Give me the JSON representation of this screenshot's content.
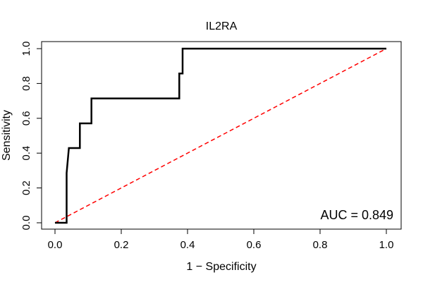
{
  "chart_data": {
    "type": "line",
    "title": "IL2RA",
    "xlabel": "1 − Specificity",
    "ylabel": "Sensitivity",
    "xlim": [
      0,
      1
    ],
    "ylim": [
      0,
      1
    ],
    "xticks": [
      "0.0",
      "0.2",
      "0.4",
      "0.6",
      "0.8",
      "1.0"
    ],
    "yticks": [
      "0.0",
      "0.2",
      "0.4",
      "0.6",
      "0.8",
      "1.0"
    ],
    "grid": false,
    "annotation": "AUC = 0.849",
    "series": [
      {
        "color": "#000000",
        "x": [
          0.0,
          0.035,
          0.035,
          0.042,
          0.042,
          0.075,
          0.075,
          0.11,
          0.11,
          0.375,
          0.375,
          0.385,
          0.385,
          1.0
        ],
        "y": [
          0.0,
          0.0,
          0.286,
          0.429,
          0.429,
          0.429,
          0.571,
          0.571,
          0.714,
          0.714,
          0.857,
          0.857,
          1.0,
          1.0
        ]
      }
    ],
    "reference_line": {
      "x": [
        0,
        1
      ],
      "y": [
        0,
        1
      ],
      "color": "#ff0000",
      "style": "dashed"
    }
  }
}
